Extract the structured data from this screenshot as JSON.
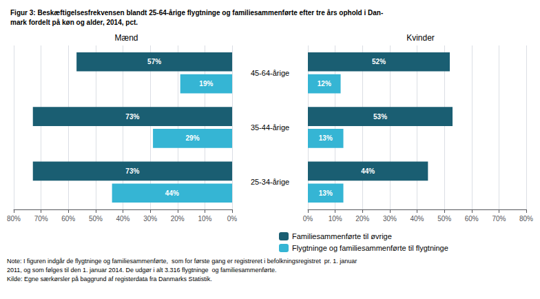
{
  "title": "Figur 3: Beskæftigelsesfrekvensen blandt 25-64-årige flygtninge og familiesammenførte efter tre års ophold i Dan-\nmark fordelt på køn og alder, 2014, pct.",
  "annotations": [
    "Note: I figuren indgår de flygtninge og familiesammenførte,  som for første gang er registreret i befolkningsregistret  pr. 1. januar\n2011, og som følges til den 1. januar 2014. De udgør i alt 3.316 flygtninge  og familiesammenførte.\nKilde: Egne særkørsler på baggrund af registerdata fra Danmarks Statistik."
  ],
  "legend": "bottom",
  "chart_data": [
    {
      "type": "bar",
      "orientation": "horizontal",
      "title": "Mænd",
      "categories": [
        "45-64-årige",
        "35-44-årige",
        "25-34-årige"
      ],
      "series": [
        {
          "name": "Familiesammenførte til øvrige",
          "color": "#1a5e72",
          "values": [
            57,
            73,
            73
          ],
          "value_labels": [
            "57%",
            "73%",
            "73%"
          ]
        },
        {
          "name": "Flygtninge og familiesammenførte til flygtninge",
          "color": "#35b5d4",
          "values": [
            19,
            29,
            44
          ],
          "value_labels": [
            "19%",
            "29%",
            "44%"
          ]
        }
      ],
      "xlim": [
        80,
        0
      ],
      "xticks": [
        {
          "value": 0,
          "label": "0%"
        },
        {
          "value": 10,
          "label": "10%"
        },
        {
          "value": 20,
          "label": "20%"
        },
        {
          "value": 30,
          "label": "30%"
        },
        {
          "value": 40,
          "label": "40%"
        },
        {
          "value": 50,
          "label": "50%"
        },
        {
          "value": 60,
          "label": "60%"
        },
        {
          "value": 70,
          "label": "70%"
        },
        {
          "value": 80,
          "label": "80%"
        }
      ],
      "grid": true,
      "data_labels": true
    },
    {
      "type": "bar",
      "orientation": "horizontal",
      "title": "Kvinder",
      "categories": [
        "45-64-årige",
        "35-44-årige",
        "25-34-årige"
      ],
      "series": [
        {
          "name": "Familiesammenførte til øvrige",
          "color": "#1a5e72",
          "values": [
            52,
            53,
            44
          ],
          "value_labels": [
            "52%",
            "53%",
            "44%"
          ]
        },
        {
          "name": "Flygtninge og familiesammenførte til flygtninge",
          "color": "#35b5d4",
          "values": [
            12,
            13,
            13
          ],
          "value_labels": [
            "12%",
            "13%",
            "13%"
          ]
        }
      ],
      "xlim": [
        0,
        80
      ],
      "xticks": [
        {
          "value": 0,
          "label": "0%"
        },
        {
          "value": 10,
          "label": "10%"
        },
        {
          "value": 20,
          "label": "20%"
        },
        {
          "value": 30,
          "label": "30%"
        },
        {
          "value": 40,
          "label": "40%"
        },
        {
          "value": 50,
          "label": "50%"
        },
        {
          "value": 60,
          "label": "60%"
        },
        {
          "value": 70,
          "label": "70%"
        },
        {
          "value": 80,
          "label": "80%"
        }
      ],
      "grid": true,
      "data_labels": true
    }
  ]
}
